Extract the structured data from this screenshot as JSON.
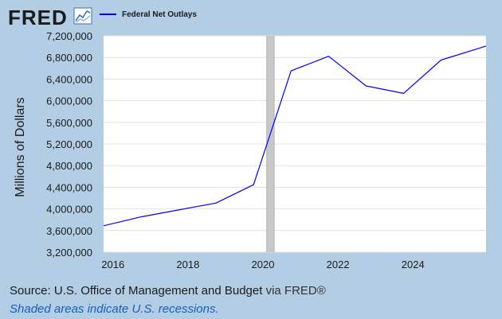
{
  "brand": {
    "logo_text": "FRED",
    "logo_icon": "line-chart-icon",
    "logo_registered": "®"
  },
  "legend": {
    "label": "Federal Net Outlays",
    "color": "#0000ff"
  },
  "footer": {
    "source_prefix": "Source: U.S. Office of Management and Budget",
    "source_via": "via FRED®",
    "note": "Shaded areas indicate U.S. recessions."
  },
  "chart_data": {
    "type": "line",
    "title": "",
    "xlabel": "",
    "ylabel": "Millions of Dollars",
    "xlim": [
      2015.75,
      2025.95
    ],
    "ylim": [
      3200000,
      7200000
    ],
    "x_ticks": [
      2016,
      2018,
      2020,
      2022,
      2024
    ],
    "x_tick_labels": [
      "2016",
      "2018",
      "2020",
      "2022",
      "2024"
    ],
    "y_ticks": [
      3200000,
      3600000,
      4000000,
      4400000,
      4800000,
      5200000,
      5600000,
      6000000,
      6400000,
      6800000,
      7200000
    ],
    "y_tick_labels": [
      "3,200,000",
      "3,600,000",
      "4,000,000",
      "4,400,000",
      "4,800,000",
      "5,200,000",
      "5,600,000",
      "6,000,000",
      "6,400,000",
      "6,800,000",
      "7,200,000"
    ],
    "grid": true,
    "recessions": [
      {
        "start": 2020.1,
        "end": 2020.3
      }
    ],
    "series": [
      {
        "name": "Federal Net Outlays",
        "color": "#0000ff",
        "x": [
          2015.75,
          2016.75,
          2017.75,
          2018.75,
          2019.75,
          2020.75,
          2021.75,
          2022.75,
          2023.75,
          2024.75,
          2025.95
        ],
        "values": [
          3688000,
          3853000,
          3981000,
          4109000,
          4447000,
          6552000,
          6822000,
          6273000,
          6135000,
          6752000,
          7010000
        ]
      }
    ]
  }
}
